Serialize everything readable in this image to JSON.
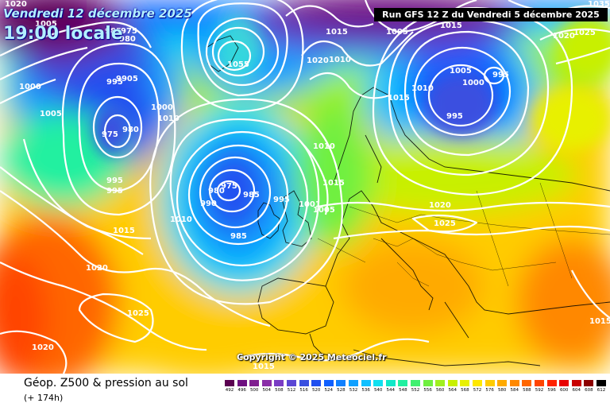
{
  "header": {
    "date_title": "Vendredi 12 décembre 2025",
    "time_title": "19:00 locale",
    "run_info": "Run GFS 12 Z du Vendredi 5 décembre 2025",
    "copyright": "Copyright © 2025 Meteociel.fr"
  },
  "footer": {
    "title": "Géop. Z500 & pression au sol",
    "lead_time": "(+ 174h)"
  },
  "legend": {
    "values": [
      "492",
      "496",
      "500",
      "504",
      "508",
      "512",
      "516",
      "520",
      "524",
      "528",
      "532",
      "536",
      "540",
      "544",
      "548",
      "552",
      "556",
      "560",
      "564",
      "568",
      "572",
      "576",
      "580",
      "584",
      "588",
      "592",
      "596",
      "600",
      "604",
      "608",
      "612"
    ],
    "colors": [
      "#5a0050",
      "#6e1080",
      "#802090",
      "#8a2ea8",
      "#7a3cc4",
      "#5a46d4",
      "#3a50e0",
      "#2050f0",
      "#1060ff",
      "#1080ff",
      "#10a0ff",
      "#10c0ff",
      "#10e0f0",
      "#10e8c8",
      "#20f0a0",
      "#40f070",
      "#70f040",
      "#a0f020",
      "#c8f000",
      "#e8f000",
      "#ffe800",
      "#ffcc00",
      "#ffaa00",
      "#ff8800",
      "#ff6600",
      "#ff4400",
      "#ff2200",
      "#e80000",
      "#c80000",
      "#8c0000",
      "#000000"
    ]
  },
  "isobar_labels": [
    {
      "text": "975"
    },
    {
      "text": "980"
    },
    {
      "text": "985"
    },
    {
      "text": "995"
    },
    {
      "text": "9905"
    },
    {
      "text": "1005"
    },
    {
      "text": "1000"
    },
    {
      "text": "1020"
    },
    {
      "text": "975"
    },
    {
      "text": "980"
    },
    {
      "text": "1000"
    },
    {
      "text": "1010"
    },
    {
      "text": "995"
    },
    {
      "text": "995"
    },
    {
      "text": "1005"
    },
    {
      "text": "1015"
    },
    {
      "text": "1020"
    },
    {
      "text": "1025"
    },
    {
      "text": "1020"
    },
    {
      "text": "1055"
    },
    {
      "text": "1015"
    },
    {
      "text": "1010"
    },
    {
      "text": "1020"
    },
    {
      "text": "1005"
    },
    {
      "text": "1010"
    },
    {
      "text": "1015"
    },
    {
      "text": "1015"
    },
    {
      "text": "1005"
    },
    {
      "text": "1000"
    },
    {
      "text": "995"
    },
    {
      "text": "995"
    },
    {
      "text": "1020"
    },
    {
      "text": "1025"
    },
    {
      "text": "1035"
    },
    {
      "text": "975"
    },
    {
      "text": "980"
    },
    {
      "text": "985"
    },
    {
      "text": "990"
    },
    {
      "text": "985"
    },
    {
      "text": "1010"
    },
    {
      "text": "995"
    },
    {
      "text": "1001"
    },
    {
      "text": "1005"
    },
    {
      "text": "1010"
    },
    {
      "text": "1015"
    },
    {
      "text": "1020"
    },
    {
      "text": "1025"
    },
    {
      "text": "1015"
    },
    {
      "text": "1015"
    }
  ]
}
